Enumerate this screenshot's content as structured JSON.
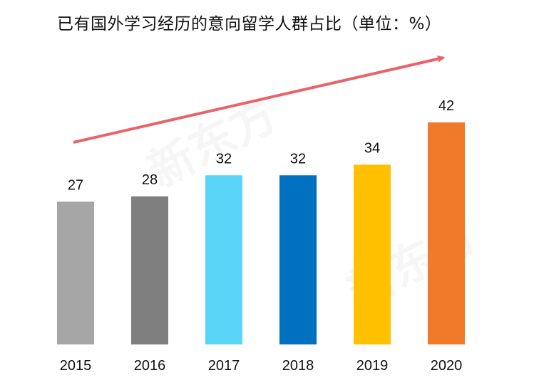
{
  "chart_data": {
    "type": "bar",
    "title": "已有国外学习经历的意向留学人群占比（单位：%）",
    "categories": [
      "2015",
      "2016",
      "2017",
      "2018",
      "2019",
      "2020"
    ],
    "values": [
      27,
      28,
      32,
      32,
      34,
      42
    ],
    "data_labels": [
      "27",
      "28",
      "32",
      "32",
      "34",
      "42"
    ],
    "colors": [
      "#A6A6A6",
      "#7F7F7F",
      "#5AD5F7",
      "#0070C0",
      "#FFC000",
      "#F07A2A"
    ],
    "ylim": [
      0,
      42
    ],
    "grid": false,
    "trend_arrow_color": "#E8636A",
    "xlabel": "",
    "ylabel": ""
  },
  "watermark": "新东方 XDF.CN"
}
